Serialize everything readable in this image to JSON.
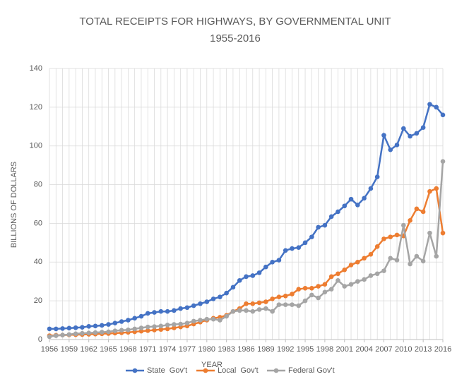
{
  "chart_data": {
    "type": "line",
    "title": "TOTAL RECEIPTS FOR HIGHWAYS, BY GOVERNMENTAL UNIT",
    "subtitle": "1955-2016",
    "x_label": "YEAR",
    "y_label": "BILLIONS OF DOLLARS",
    "x": [
      1956,
      1957,
      1958,
      1959,
      1960,
      1961,
      1962,
      1963,
      1964,
      1965,
      1966,
      1967,
      1968,
      1969,
      1970,
      1971,
      1972,
      1973,
      1974,
      1975,
      1976,
      1977,
      1978,
      1979,
      1980,
      1981,
      1982,
      1983,
      1984,
      1985,
      1986,
      1987,
      1988,
      1989,
      1990,
      1991,
      1992,
      1993,
      1994,
      1995,
      1996,
      1997,
      1998,
      1999,
      2000,
      2001,
      2002,
      2003,
      2004,
      2005,
      2006,
      2007,
      2008,
      2009,
      2010,
      2011,
      2012,
      2013,
      2014,
      2015,
      2016
    ],
    "series": [
      {
        "name": "State  Gov't",
        "color": "#4472c4",
        "values": [
          5.5,
          5.5,
          5.7,
          5.9,
          6.1,
          6.3,
          6.8,
          7.0,
          7.3,
          7.8,
          8.5,
          9.3,
          10.0,
          11.0,
          12.0,
          13.5,
          14.0,
          14.5,
          14.5,
          15.0,
          16.0,
          16.5,
          17.5,
          18.5,
          19.5,
          21.0,
          22.0,
          24.0,
          27.0,
          30.5,
          32.5,
          33.0,
          34.5,
          37.5,
          40.0,
          41.0,
          46.0,
          47.0,
          47.5,
          50.0,
          53.0,
          58.0,
          59.0,
          63.5,
          66.0,
          69.0,
          72.5,
          69.5,
          73.0,
          78.0,
          84.0,
          105.5,
          98.0,
          100.5,
          109.0,
          105.0,
          106.5,
          109.5,
          121.5,
          120.0,
          116.0
        ]
      },
      {
        "name": "Local  Gov't",
        "color": "#ed7d31",
        "values": [
          2.0,
          2.2,
          2.3,
          2.4,
          2.5,
          2.6,
          2.7,
          2.8,
          3.0,
          3.1,
          3.3,
          3.5,
          3.7,
          4.0,
          4.3,
          4.6,
          4.9,
          5.2,
          5.5,
          6.0,
          6.5,
          7.0,
          8.0,
          9.0,
          10.0,
          11.0,
          11.5,
          12.5,
          14.5,
          16.0,
          18.5,
          18.5,
          19.0,
          19.5,
          21.0,
          22.0,
          22.5,
          23.5,
          26.0,
          26.5,
          26.5,
          27.5,
          28.5,
          32.5,
          34.0,
          36.0,
          38.5,
          40.0,
          42.0,
          44.0,
          48.0,
          52.0,
          53.0,
          54.0,
          53.5,
          61.5,
          67.5,
          66.0,
          76.5,
          78.0,
          55.0
        ]
      },
      {
        "name": "Federal Gov't",
        "color": "#a5a5a5",
        "values": [
          1.5,
          2.0,
          2.3,
          2.6,
          3.0,
          3.2,
          3.4,
          3.6,
          3.8,
          4.0,
          4.5,
          4.8,
          5.0,
          5.5,
          6.0,
          6.5,
          6.7,
          7.0,
          7.5,
          7.8,
          8.0,
          8.5,
          9.5,
          10.0,
          10.5,
          10.5,
          10.0,
          12.0,
          14.5,
          15.0,
          15.0,
          14.5,
          15.5,
          16.0,
          14.5,
          18.0,
          18.0,
          18.0,
          17.5,
          20.0,
          23.0,
          21.5,
          24.5,
          26.0,
          30.5,
          27.5,
          28.5,
          30.0,
          31.0,
          33.0,
          34.0,
          35.5,
          42.0,
          41.0,
          59.0,
          39.0,
          43.0,
          40.5,
          55.0,
          43.0,
          92.0
        ]
      }
    ],
    "xlim": [
      1956,
      2016
    ],
    "xticks": [
      1956,
      1959,
      1962,
      1965,
      1968,
      1971,
      1974,
      1977,
      1980,
      1983,
      1986,
      1989,
      1992,
      1995,
      1998,
      2001,
      2004,
      2007,
      2010,
      2013,
      2016
    ],
    "ylim": [
      0,
      140
    ],
    "yticks": [
      0,
      20,
      40,
      60,
      80,
      100,
      120,
      140
    ],
    "grid": true,
    "legend": "bottom"
  }
}
